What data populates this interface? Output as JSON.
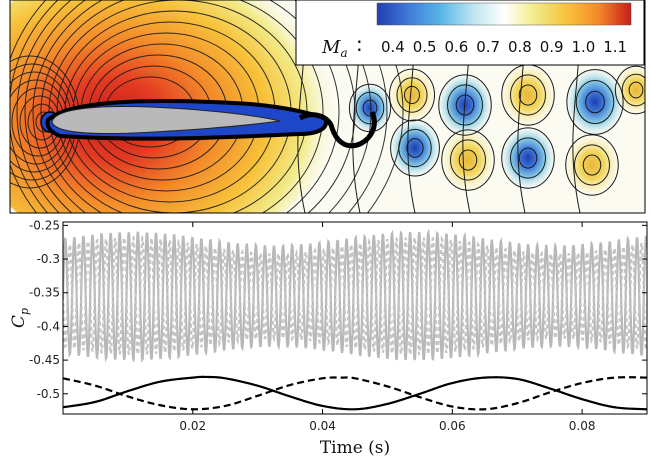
{
  "chart_data": [
    {
      "type": "contour",
      "title": "",
      "colorbar": {
        "label_symbol": "M",
        "label_subscript": "a",
        "label_colon": ":",
        "ticks": [
          "0.4",
          "0.5",
          "0.6",
          "0.7",
          "0.8",
          "0.9",
          "1.0",
          "1.1"
        ],
        "range": [
          0.35,
          1.15
        ],
        "colors": [
          "#1f3fb0",
          "#3f78d8",
          "#57b6e6",
          "#bfe6f0",
          "#ffffff",
          "#f2eb8a",
          "#f7c23a",
          "#f38a2a",
          "#e33a22",
          "#c81e1a"
        ]
      },
      "field_colors": {
        "far_field": "#fbfbf2",
        "upstream_low": "#8fd2e8",
        "stagnation": "#1e46c8",
        "supersonic_core": "#e0402a",
        "airfoil": "#b9b9b9",
        "wake_low": "#86c9e2",
        "wake_high": "#f4e27a",
        "wake_high_core": "#e9b63a"
      }
    },
    {
      "type": "line",
      "xlabel": "Time (s)",
      "ylabel_symbol": "C",
      "ylabel_subscript": "p",
      "xlim": [
        0.0,
        0.09
      ],
      "ylim": [
        -0.53,
        -0.245
      ],
      "xticks": [
        0.02,
        0.04,
        0.06,
        0.08
      ],
      "xtick_labels": [
        "0.02",
        "0.04",
        "0.06",
        "0.08"
      ],
      "yticks": [
        -0.25,
        -0.3,
        -0.35,
        -0.4,
        -0.45,
        -0.5
      ],
      "ytick_labels": [
        "-0.25",
        "-0.3",
        "-0.35",
        "-0.4",
        "-0.45",
        "-0.5"
      ],
      "series": [
        {
          "style": "solid",
          "color": "#b8b8b8",
          "model": {
            "kind": "sine",
            "mean": -0.355,
            "amplitude": 0.085,
            "frequency_hz": 715,
            "phase": 0.0,
            "modulation": 0.01
          }
        },
        {
          "style": "dashed",
          "color": "#c4c4c4",
          "model": {
            "kind": "sine",
            "mean": -0.355,
            "amplitude": 0.075,
            "frequency_hz": 715,
            "phase": 3.14159,
            "modulation": 0.012
          }
        },
        {
          "style": "solid",
          "color": "#000000",
          "x": [
            0.0,
            0.005,
            0.01,
            0.015,
            0.02,
            0.022,
            0.025,
            0.03,
            0.035,
            0.04,
            0.045,
            0.05,
            0.055,
            0.06,
            0.065,
            0.07,
            0.075,
            0.08,
            0.085,
            0.09
          ],
          "y": [
            -0.52,
            -0.512,
            -0.496,
            -0.482,
            -0.476,
            -0.475,
            -0.477,
            -0.488,
            -0.504,
            -0.518,
            -0.523,
            -0.515,
            -0.5,
            -0.484,
            -0.476,
            -0.478,
            -0.492,
            -0.508,
            -0.52,
            -0.523
          ]
        },
        {
          "style": "dashed",
          "color": "#000000",
          "x": [
            0.0,
            0.005,
            0.01,
            0.015,
            0.02,
            0.025,
            0.03,
            0.035,
            0.04,
            0.043,
            0.045,
            0.05,
            0.055,
            0.06,
            0.065,
            0.07,
            0.075,
            0.08,
            0.085,
            0.09
          ],
          "y": [
            -0.477,
            -0.488,
            -0.504,
            -0.517,
            -0.523,
            -0.518,
            -0.503,
            -0.487,
            -0.477,
            -0.476,
            -0.477,
            -0.489,
            -0.505,
            -0.519,
            -0.523,
            -0.514,
            -0.498,
            -0.484,
            -0.476,
            -0.476
          ]
        }
      ]
    }
  ]
}
